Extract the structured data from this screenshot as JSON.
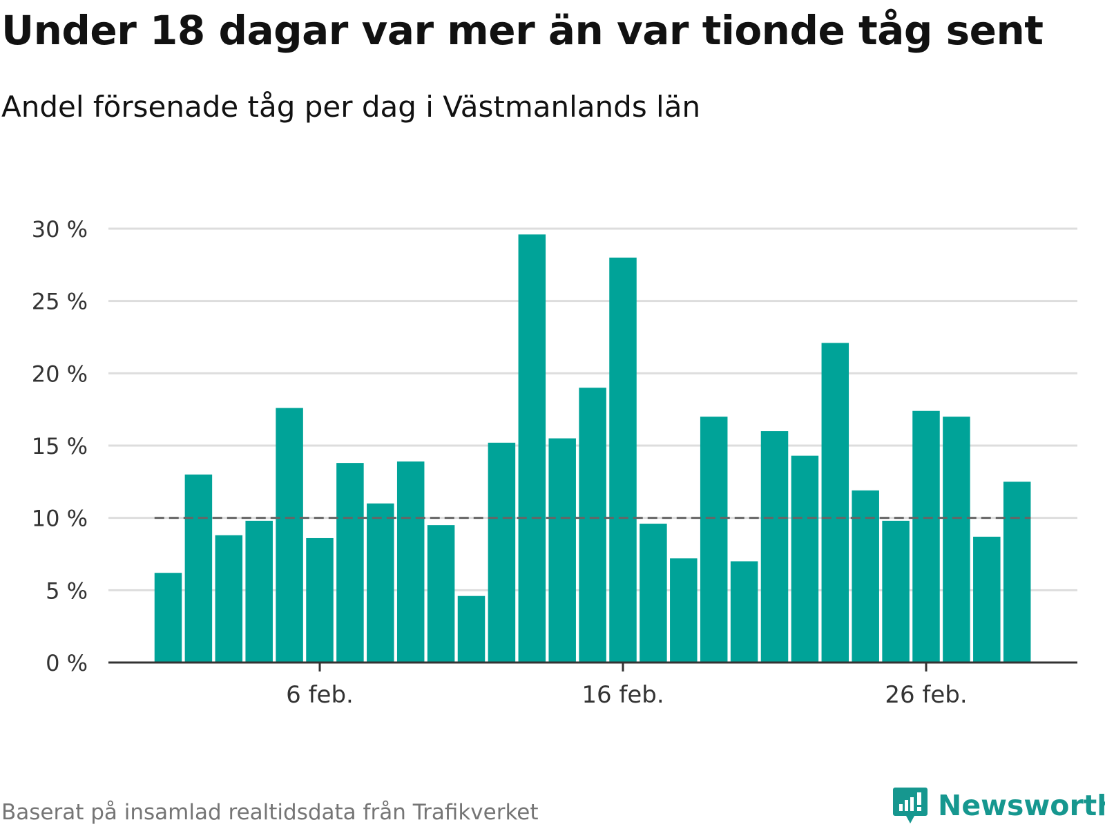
{
  "title": "Under 18 dagar var mer än var tionde tåg sent",
  "subtitle": "Andel försenade tåg per dag i Västmanlands län",
  "source": "Baserat på insamlad realtidsdata från Trafikverket",
  "brand": "Newsworthy",
  "colors": {
    "bar": "#00a398",
    "grid": "#dddddd",
    "axis": "#333333",
    "reference_line": "#666666",
    "brand": "#16978f",
    "source_text": "#757575"
  },
  "chart_data": {
    "type": "bar",
    "categories": [
      "1 feb.",
      "2 feb.",
      "3 feb.",
      "4 feb.",
      "5 feb.",
      "6 feb.",
      "7 feb.",
      "8 feb.",
      "9 feb.",
      "10 feb.",
      "11 feb.",
      "12 feb.",
      "13 feb.",
      "14 feb.",
      "15 feb.",
      "16 feb.",
      "17 feb.",
      "18 feb.",
      "19 feb.",
      "20 feb.",
      "21 feb.",
      "22 feb.",
      "23 feb.",
      "24 feb.",
      "25 feb.",
      "26 feb.",
      "27 feb.",
      "28 feb.",
      "29 feb."
    ],
    "values": [
      6.2,
      13.0,
      8.8,
      9.8,
      17.6,
      8.6,
      13.8,
      11.0,
      13.9,
      9.5,
      4.6,
      15.2,
      29.6,
      15.5,
      19.0,
      28.0,
      9.6,
      7.2,
      17.0,
      7.0,
      16.0,
      14.3,
      22.1,
      11.9,
      9.8,
      17.4,
      17.0,
      8.7,
      12.5
    ],
    "xtick_labels": [
      "6 feb.",
      "16 feb.",
      "26 feb."
    ],
    "xtick_categories": [
      "6 feb.",
      "16 feb.",
      "26 feb."
    ],
    "yticks": [
      0,
      5,
      10,
      15,
      20,
      25,
      30
    ],
    "ytick_labels": [
      "0 %",
      "5 %",
      "10 %",
      "15 %",
      "20 %",
      "25 %",
      "30 %"
    ],
    "ylim": [
      0,
      30
    ],
    "reference_line": 10,
    "grid": true,
    "xlabel": "",
    "ylabel": ""
  }
}
